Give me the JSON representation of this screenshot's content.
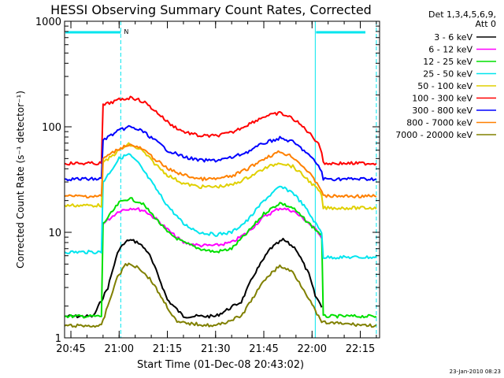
{
  "chart_data": {
    "type": "line",
    "title": "HESSI Observing Summary Count Rates, Corrected",
    "xlabel": "Start Time (01-Dec-08 20:43:02)",
    "ylabel": "Corrected Count Rate (s⁻¹ detector⁻¹)",
    "x_unit": "UT time of day",
    "xlim": [
      "20:43:02",
      "22:21:00"
    ],
    "ylim": [
      1,
      1000
    ],
    "yscale": "log",
    "x_ticks": [
      "20:45",
      "21:00",
      "21:15",
      "21:30",
      "21:45",
      "22:00",
      "22:15"
    ],
    "y_ticks": [
      "1",
      "10",
      "100",
      "1000"
    ],
    "legend_title": [
      "Det 1,3,4,5,6,9,",
      "Att 0"
    ],
    "legend_position": "outside-right",
    "footer": "23-Jan-2010 08:23",
    "night_markers": {
      "night_intervals": [
        [
          "20:43:02",
          "21:00:30"
        ],
        [
          "22:01:00",
          "22:21:00"
        ]
      ],
      "saa_label": "N",
      "dashed_at": [
        "21:00:30",
        "22:20:00"
      ],
      "solid_at": [
        "22:01:00"
      ],
      "color": "#00e5ee"
    },
    "series": [
      {
        "name": "3 - 6 keV",
        "color": "#000000",
        "points": [
          [
            "20:43:02",
            1.6
          ],
          [
            "20:52:00",
            1.6
          ],
          [
            "20:56:30",
            3.0
          ],
          [
            "20:58:30",
            5.0
          ],
          [
            "21:00:00",
            7.0
          ],
          [
            "21:03:00",
            8.5
          ],
          [
            "21:06:00",
            8.0
          ],
          [
            "21:09:00",
            6.5
          ],
          [
            "21:12:00",
            4.0
          ],
          [
            "21:15:00",
            2.3
          ],
          [
            "21:20:00",
            1.6
          ],
          [
            "21:30:00",
            1.6
          ],
          [
            "21:38:00",
            2.2
          ],
          [
            "21:42:00",
            4.0
          ],
          [
            "21:47:00",
            7.0
          ],
          [
            "21:51:00",
            8.5
          ],
          [
            "21:55:00",
            7.0
          ],
          [
            "21:59:00",
            4.0
          ],
          [
            "22:01:00",
            2.5
          ],
          [
            "22:03:00",
            2.0
          ]
        ]
      },
      {
        "name": "6 - 12 keV",
        "color": "#ff00ff",
        "points": [
          [
            "20:55:00",
            12
          ],
          [
            "21:00:00",
            16
          ],
          [
            "21:04:00",
            17
          ],
          [
            "21:08:00",
            16
          ],
          [
            "21:12:00",
            13
          ],
          [
            "21:16:00",
            10
          ],
          [
            "21:20:00",
            8
          ],
          [
            "21:25:00",
            7.5
          ],
          [
            "21:30:00",
            7.5
          ],
          [
            "21:35:00",
            8
          ],
          [
            "21:40:00",
            10
          ],
          [
            "21:45:00",
            14
          ],
          [
            "21:50:00",
            17
          ],
          [
            "21:54:00",
            16
          ],
          [
            "21:58:00",
            13
          ],
          [
            "22:02:00",
            10
          ],
          [
            "22:03:00",
            9
          ]
        ]
      },
      {
        "name": "12 - 25 keV",
        "color": "#00e000",
        "points": [
          [
            "20:43:02",
            1.6
          ],
          [
            "20:54:30",
            1.6
          ],
          [
            "20:55:00",
            12
          ],
          [
            "21:00:00",
            19
          ],
          [
            "21:03:00",
            21
          ],
          [
            "21:07:00",
            19
          ],
          [
            "21:11:00",
            14
          ],
          [
            "21:15:00",
            10
          ],
          [
            "21:20:00",
            8
          ],
          [
            "21:25:00",
            7
          ],
          [
            "21:30:00",
            6.5
          ],
          [
            "21:35:00",
            7
          ],
          [
            "21:40:00",
            10
          ],
          [
            "21:45:00",
            15
          ],
          [
            "21:50:00",
            19
          ],
          [
            "21:54:00",
            17
          ],
          [
            "21:58:00",
            13
          ],
          [
            "22:02:00",
            10
          ],
          [
            "22:03:00",
            9.5
          ],
          [
            "22:03:30",
            1.6
          ],
          [
            "22:20:00",
            1.6
          ]
        ]
      },
      {
        "name": "25 - 50 keV",
        "color": "#00e5ee",
        "points": [
          [
            "20:43:02",
            6.5
          ],
          [
            "20:54:30",
            6.5
          ],
          [
            "20:55:00",
            30
          ],
          [
            "21:00:00",
            50
          ],
          [
            "21:03:00",
            55
          ],
          [
            "21:06:00",
            45
          ],
          [
            "21:10:00",
            30
          ],
          [
            "21:15:00",
            18
          ],
          [
            "21:20:00",
            12
          ],
          [
            "21:25:00",
            10
          ],
          [
            "21:30:00",
            9.5
          ],
          [
            "21:35:00",
            10
          ],
          [
            "21:40:00",
            13
          ],
          [
            "21:45:00",
            20
          ],
          [
            "21:50:00",
            27
          ],
          [
            "21:54:00",
            24
          ],
          [
            "21:58:00",
            17
          ],
          [
            "22:02:00",
            11
          ],
          [
            "22:03:00",
            10
          ],
          [
            "22:03:30",
            5.8
          ],
          [
            "22:20:00",
            5.8
          ]
        ]
      },
      {
        "name": "50 - 100 keV",
        "color": "#e0d000",
        "points": [
          [
            "20:43:02",
            18
          ],
          [
            "20:54:30",
            18
          ],
          [
            "20:55:00",
            45
          ],
          [
            "21:00:00",
            60
          ],
          [
            "21:03:00",
            68
          ],
          [
            "21:07:00",
            60
          ],
          [
            "21:11:00",
            45
          ],
          [
            "21:15:00",
            35
          ],
          [
            "21:20:00",
            29
          ],
          [
            "21:25:00",
            27
          ],
          [
            "21:30:00",
            27
          ],
          [
            "21:35:00",
            28
          ],
          [
            "21:40:00",
            33
          ],
          [
            "21:45:00",
            40
          ],
          [
            "21:50:00",
            46
          ],
          [
            "21:54:00",
            42
          ],
          [
            "21:58:00",
            33
          ],
          [
            "22:02:00",
            25
          ],
          [
            "22:03:00",
            22
          ],
          [
            "22:03:30",
            17
          ],
          [
            "22:20:00",
            17
          ]
        ]
      },
      {
        "name": "100 - 300 keV",
        "color": "#ff0000",
        "points": [
          [
            "20:43:02",
            45
          ],
          [
            "20:54:30",
            45
          ],
          [
            "20:55:00",
            160
          ],
          [
            "21:00:00",
            180
          ],
          [
            "21:04:00",
            190
          ],
          [
            "21:08:00",
            170
          ],
          [
            "21:12:00",
            135
          ],
          [
            "21:16:00",
            105
          ],
          [
            "21:20:00",
            90
          ],
          [
            "21:25:00",
            82
          ],
          [
            "21:30:00",
            82
          ],
          [
            "21:35:00",
            88
          ],
          [
            "21:40:00",
            105
          ],
          [
            "21:45:00",
            125
          ],
          [
            "21:50:00",
            135
          ],
          [
            "21:54:00",
            120
          ],
          [
            "21:58:00",
            95
          ],
          [
            "22:02:00",
            70
          ],
          [
            "22:03:00",
            58
          ],
          [
            "22:03:30",
            45
          ],
          [
            "22:20:00",
            45
          ]
        ]
      },
      {
        "name": "300 - 800 keV",
        "color": "#0000ff",
        "points": [
          [
            "20:43:02",
            32
          ],
          [
            "20:54:30",
            32
          ],
          [
            "20:55:00",
            75
          ],
          [
            "21:00:00",
            92
          ],
          [
            "21:03:00",
            100
          ],
          [
            "21:07:00",
            92
          ],
          [
            "21:11:00",
            75
          ],
          [
            "21:15:00",
            60
          ],
          [
            "21:20:00",
            52
          ],
          [
            "21:25:00",
            48
          ],
          [
            "21:30:00",
            48
          ],
          [
            "21:35:00",
            51
          ],
          [
            "21:40:00",
            58
          ],
          [
            "21:45:00",
            70
          ],
          [
            "21:50:00",
            78
          ],
          [
            "21:54:00",
            72
          ],
          [
            "21:58:00",
            58
          ],
          [
            "22:02:00",
            43
          ],
          [
            "22:03:00",
            37
          ],
          [
            "22:03:30",
            32
          ],
          [
            "22:20:00",
            32
          ]
        ]
      },
      {
        "name": "800 - 7000 keV",
        "color": "#ff8000",
        "points": [
          [
            "20:43:02",
            22
          ],
          [
            "20:54:30",
            22
          ],
          [
            "20:55:00",
            50
          ],
          [
            "21:00:00",
            62
          ],
          [
            "21:03:00",
            68
          ],
          [
            "21:07:00",
            62
          ],
          [
            "21:11:00",
            50
          ],
          [
            "21:15:00",
            40
          ],
          [
            "21:20:00",
            35
          ],
          [
            "21:25:00",
            32
          ],
          [
            "21:30:00",
            32
          ],
          [
            "21:35:00",
            34
          ],
          [
            "21:40:00",
            40
          ],
          [
            "21:45:00",
            50
          ],
          [
            "21:50:00",
            58
          ],
          [
            "21:54:00",
            52
          ],
          [
            "21:58:00",
            40
          ],
          [
            "22:02:00",
            28
          ],
          [
            "22:03:00",
            25
          ],
          [
            "22:03:30",
            22
          ],
          [
            "22:20:00",
            22
          ]
        ]
      },
      {
        "name": "7000 - 20000 keV",
        "color": "#808000",
        "points": [
          [
            "20:43:02",
            1.3
          ],
          [
            "20:54:30",
            1.3
          ],
          [
            "20:56:30",
            2.0
          ],
          [
            "20:59:00",
            3.5
          ],
          [
            "21:02:00",
            5.0
          ],
          [
            "21:06:00",
            4.7
          ],
          [
            "21:10:00",
            3.5
          ],
          [
            "21:14:00",
            2.2
          ],
          [
            "21:18:00",
            1.4
          ],
          [
            "21:30:00",
            1.3
          ],
          [
            "21:38:00",
            1.6
          ],
          [
            "21:42:00",
            2.5
          ],
          [
            "21:46:00",
            3.8
          ],
          [
            "21:50:00",
            4.8
          ],
          [
            "21:54:00",
            4.2
          ],
          [
            "21:58:00",
            2.7
          ],
          [
            "22:01:00",
            1.8
          ],
          [
            "22:03:00",
            1.4
          ],
          [
            "22:20:00",
            1.3
          ]
        ]
      }
    ]
  }
}
